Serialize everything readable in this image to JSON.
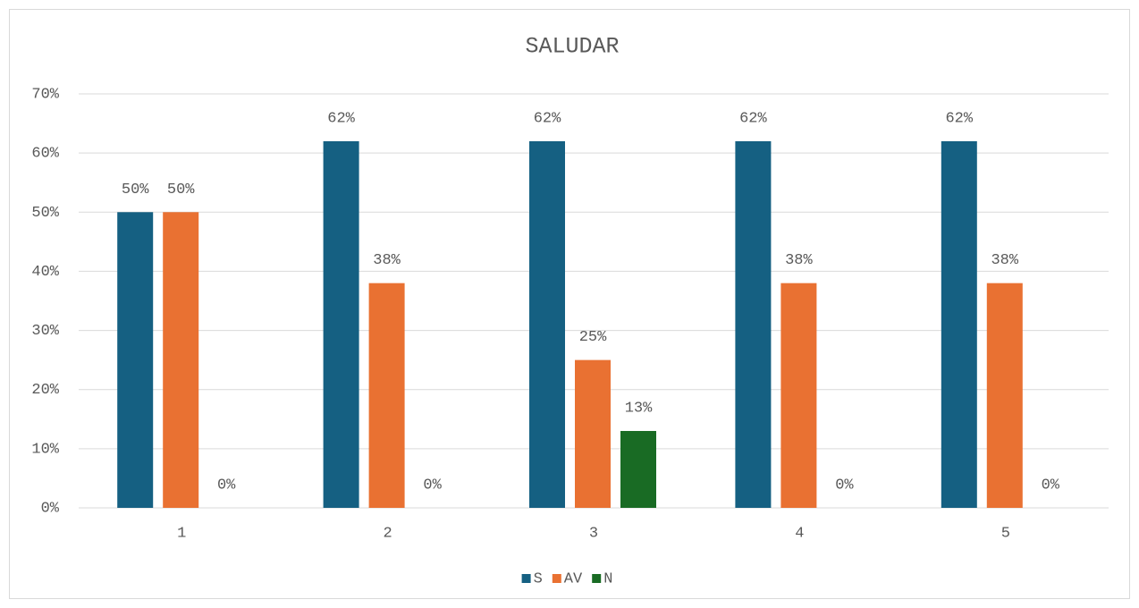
{
  "chart_data": {
    "type": "bar",
    "title": "SALUDAR",
    "categories": [
      "1",
      "2",
      "3",
      "4",
      "5"
    ],
    "series": [
      {
        "name": "S",
        "color": "#156082",
        "values": [
          50,
          62,
          62,
          62,
          62
        ],
        "value_labels": [
          "50%",
          "62%",
          "62%",
          "62%",
          "62%"
        ]
      },
      {
        "name": "AV",
        "color": "#e97132",
        "values": [
          50,
          38,
          25,
          38,
          38
        ],
        "value_labels": [
          "50%",
          "38%",
          "25%",
          "38%",
          "38%"
        ]
      },
      {
        "name": "N",
        "color": "#196b24",
        "values": [
          0,
          0,
          13,
          0,
          0
        ],
        "value_labels": [
          "0%",
          "0%",
          "13%",
          "0%",
          "0%"
        ]
      }
    ],
    "ylim": [
      0,
      70
    ],
    "yticks": [
      {
        "value": 0,
        "label": "0%"
      },
      {
        "value": 10,
        "label": "10%"
      },
      {
        "value": 20,
        "label": "20%"
      },
      {
        "value": 30,
        "label": "30%"
      },
      {
        "value": 40,
        "label": "40%"
      },
      {
        "value": 50,
        "label": "50%"
      },
      {
        "value": 60,
        "label": "60%"
      },
      {
        "value": 70,
        "label": "70%"
      }
    ],
    "grid": true,
    "legend": "bottom"
  }
}
